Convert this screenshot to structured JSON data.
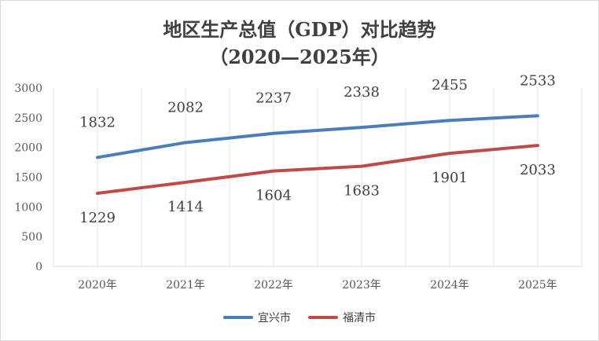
{
  "chart_data": {
    "type": "line",
    "title": "地区生产总值（GDP）对比趋势",
    "subtitle": "（2020—2025年）",
    "categories": [
      "2020年",
      "2021年",
      "2022年",
      "2023年",
      "2024年",
      "2025年"
    ],
    "ylim": [
      0,
      3000
    ],
    "yticks": [
      0,
      500,
      1000,
      1500,
      2000,
      2500,
      3000
    ],
    "xlabel": "",
    "ylabel": "",
    "legend": "bottom",
    "series": [
      {
        "name": "宜兴市",
        "color": "#4a7ebb",
        "values": [
          1832,
          2082,
          2237,
          2338,
          2455,
          2533
        ],
        "label_pos": "above"
      },
      {
        "name": "福清市",
        "color": "#be4b48",
        "values": [
          1229,
          1414,
          1604,
          1683,
          1901,
          2033
        ],
        "label_pos": "below"
      }
    ]
  }
}
